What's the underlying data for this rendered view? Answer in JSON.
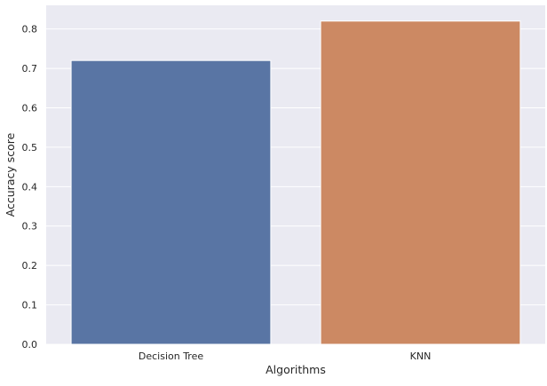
{
  "chart_data": {
    "type": "bar",
    "title": "",
    "xlabel": "Algorithms",
    "ylabel": "Accuracy score",
    "categories": [
      "Decision Tree",
      "KNN"
    ],
    "values": [
      0.72,
      0.82
    ],
    "ylim": [
      0,
      0.86
    ],
    "yticks": [
      0.0,
      0.1,
      0.2,
      0.3,
      0.4,
      0.5,
      0.6,
      0.7,
      0.8
    ],
    "ytick_labels": [
      "0.0",
      "0.1",
      "0.2",
      "0.3",
      "0.4",
      "0.5",
      "0.6",
      "0.7",
      "0.8"
    ],
    "grid": true,
    "legend": "none",
    "colors": {
      "plot_background": "#eaeaf2",
      "grid": "#ffffff",
      "text": "#262626",
      "bars": [
        "#5975a4",
        "#cc8963"
      ]
    }
  }
}
